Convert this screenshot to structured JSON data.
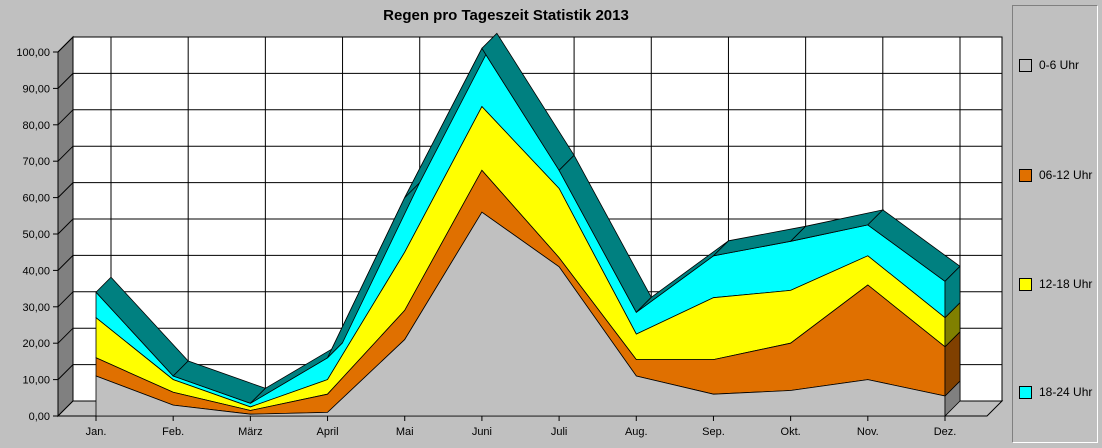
{
  "chart_data": {
    "type": "area",
    "title": "Regen pro Tageszeit Statistik 2013",
    "categories": [
      "Jan.",
      "Feb.",
      "März",
      "April",
      "Mai",
      "Juni",
      "Juli",
      "Aug.",
      "Sep.",
      "Okt.",
      "Nov.",
      "Dez."
    ],
    "stacked": true,
    "ylim": [
      0,
      100
    ],
    "yticks": [
      "0,00",
      "10,00",
      "20,00",
      "30,00",
      "40,00",
      "50,00",
      "60,00",
      "70,00",
      "80,00",
      "90,00",
      "100,00"
    ],
    "grid": true,
    "legend_position": "right",
    "series": [
      {
        "name": "0-6 Uhr",
        "color": "#c0c0c0",
        "dark": "#808080",
        "values": [
          11,
          3,
          0.5,
          1,
          21,
          56,
          41,
          11,
          6,
          7,
          10,
          5.5
        ]
      },
      {
        "name": "06-12 Uhr",
        "color": "#e07000",
        "dark": "#804000",
        "values": [
          5,
          3.5,
          1,
          5,
          8,
          11.5,
          2.5,
          4.5,
          9.5,
          13,
          26,
          13.5
        ]
      },
      {
        "name": "12-18 Uhr",
        "color": "#ffff00",
        "dark": "#808000",
        "values": [
          11,
          3.5,
          1,
          4,
          16,
          17.5,
          19,
          7,
          17,
          14.5,
          8,
          8
        ]
      },
      {
        "name": "18-24 Uhr",
        "color": "#00ffff",
        "dark": "#008080",
        "values": [
          7,
          1,
          1,
          6,
          15,
          16,
          5,
          6,
          11.5,
          13.5,
          8.5,
          10
        ]
      }
    ]
  }
}
